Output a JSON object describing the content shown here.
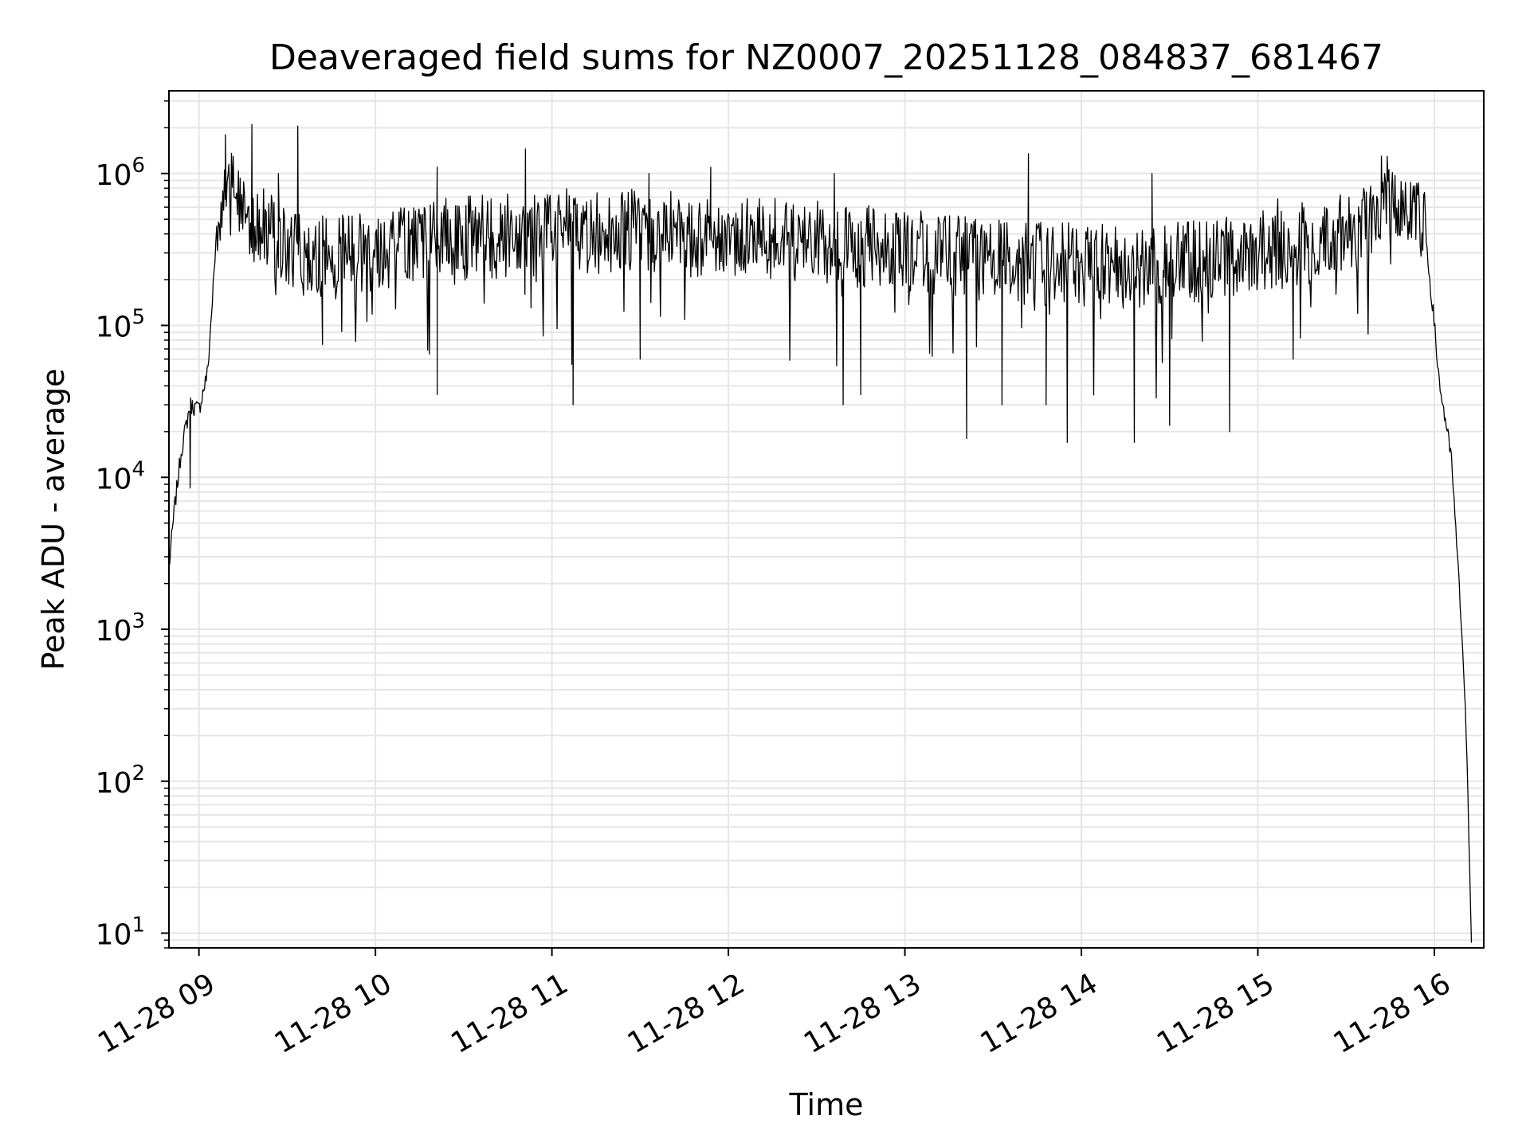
{
  "chart_data": {
    "type": "line",
    "title": "Deaveraged field sums for NZ0007_20251128_084837_681467",
    "xlabel": "Time",
    "ylabel": "Peak ADU - average",
    "yscale": "log",
    "grid": true,
    "line_color": "#000000",
    "grid_color": "#e6e6e6",
    "x_unit": "hours since 11-28 00:00",
    "xlim": [
      8.83,
      16.28
    ],
    "ylim": [
      8,
      3500000
    ],
    "x_ticks": [
      {
        "value": 9,
        "label": "11-28 09"
      },
      {
        "value": 10,
        "label": "11-28 10"
      },
      {
        "value": 11,
        "label": "11-28 11"
      },
      {
        "value": 12,
        "label": "11-28 12"
      },
      {
        "value": 13,
        "label": "11-28 13"
      },
      {
        "value": 14,
        "label": "11-28 14"
      },
      {
        "value": 15,
        "label": "11-28 15"
      },
      {
        "value": 16,
        "label": "11-28 16"
      }
    ],
    "y_ticks": [
      {
        "value": 10,
        "base": "10",
        "exp": "1"
      },
      {
        "value": 100,
        "base": "10",
        "exp": "2"
      },
      {
        "value": 1000,
        "base": "10",
        "exp": "3"
      },
      {
        "value": 10000,
        "base": "10",
        "exp": "4"
      },
      {
        "value": 100000,
        "base": "10",
        "exp": "5"
      },
      {
        "value": 1000000,
        "base": "10",
        "exp": "6"
      }
    ],
    "series": [
      {
        "name": "deaveraged field sum",
        "x": [
          8.83,
          8.86,
          8.9,
          8.95,
          9.0,
          9.05,
          9.1,
          9.15,
          9.2,
          9.3,
          9.4,
          9.5,
          9.6,
          9.8,
          10.0,
          10.5,
          11.0,
          11.5,
          12.0,
          12.5,
          13.0,
          13.3,
          13.6,
          14.0,
          14.3,
          14.6,
          15.0,
          15.3,
          15.6,
          15.75,
          15.85,
          15.95,
          16.0,
          16.03,
          16.06,
          16.1,
          16.13,
          16.16,
          16.18,
          16.2,
          16.21
        ],
        "y": [
          2500,
          6000,
          15000,
          30000,
          28000,
          50000,
          400000,
          800000,
          700000,
          500000,
          400000,
          300000,
          280000,
          300000,
          320000,
          380000,
          400000,
          420000,
          380000,
          350000,
          320000,
          280000,
          260000,
          250000,
          240000,
          260000,
          300000,
          350000,
          450000,
          750000,
          650000,
          400000,
          100000,
          40000,
          25000,
          12000,
          3000,
          800,
          200,
          30,
          9
        ]
      }
    ],
    "spikes_up": [
      {
        "x": 9.15,
        "y": 1800000
      },
      {
        "x": 9.3,
        "y": 2100000
      },
      {
        "x": 9.56,
        "y": 2050000
      },
      {
        "x": 9.45,
        "y": 1000000
      },
      {
        "x": 10.35,
        "y": 1100000
      },
      {
        "x": 10.85,
        "y": 1450000
      },
      {
        "x": 11.55,
        "y": 1000000
      },
      {
        "x": 11.9,
        "y": 1100000
      },
      {
        "x": 12.6,
        "y": 1000000
      },
      {
        "x": 13.7,
        "y": 1350000
      },
      {
        "x": 14.4,
        "y": 1000000
      },
      {
        "x": 15.7,
        "y": 1300000
      }
    ],
    "spikes_down": [
      {
        "x": 8.95,
        "y": 8500
      },
      {
        "x": 9.7,
        "y": 75000
      },
      {
        "x": 10.35,
        "y": 35000
      },
      {
        "x": 11.12,
        "y": 30000
      },
      {
        "x": 11.5,
        "y": 60000
      },
      {
        "x": 12.65,
        "y": 30000
      },
      {
        "x": 12.75,
        "y": 35000
      },
      {
        "x": 13.35,
        "y": 18000
      },
      {
        "x": 13.55,
        "y": 30000
      },
      {
        "x": 13.8,
        "y": 30000
      },
      {
        "x": 13.92,
        "y": 17000
      },
      {
        "x": 14.3,
        "y": 17000
      },
      {
        "x": 14.5,
        "y": 22000
      },
      {
        "x": 14.84,
        "y": 20000
      },
      {
        "x": 15.2,
        "y": 60000
      }
    ]
  }
}
